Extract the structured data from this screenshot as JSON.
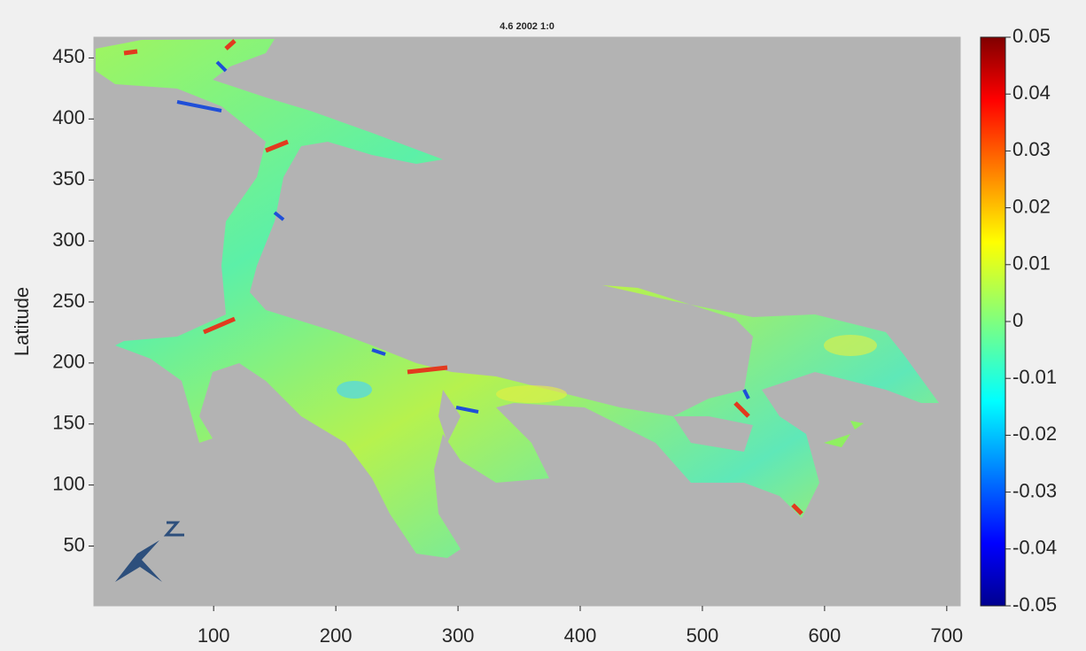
{
  "chart_data": {
    "type": "heatmap",
    "title": "4.6 2002 1:0",
    "y_label": "Latitude",
    "xlim": [
      2,
      711
    ],
    "xticks": [
      100,
      200,
      300,
      400,
      500,
      600,
      700
    ],
    "ylim": [
      1,
      467
    ],
    "yticks": [
      50,
      100,
      150,
      200,
      250,
      300,
      350,
      400,
      450
    ],
    "colormap": "jet",
    "clim": [
      -0.05,
      0.05
    ],
    "cticks": [
      -0.05,
      -0.04,
      -0.03,
      -0.02,
      -0.01,
      0,
      0.01,
      0.02,
      0.03,
      0.04,
      0.05
    ]
  }
}
